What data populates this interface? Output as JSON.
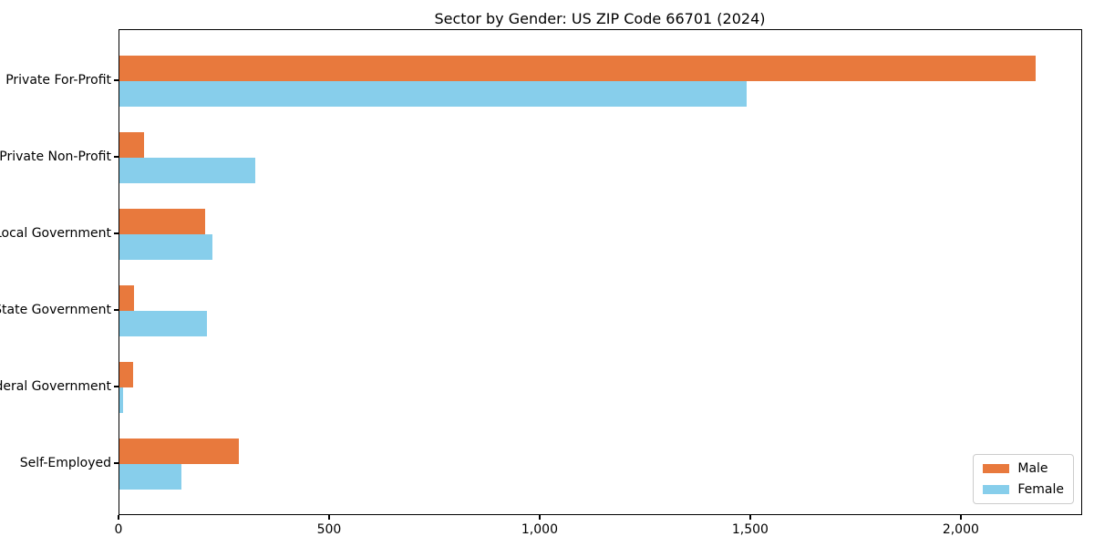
{
  "chart_data": {
    "type": "bar",
    "orientation": "horizontal",
    "title": "Sector by Gender: US ZIP Code 66701 (2024)",
    "categories": [
      "Private For-Profit",
      "Private Non-Profit",
      "Local Government",
      "State Government",
      "Federal Government",
      "Self-Employed"
    ],
    "series": [
      {
        "name": "Male",
        "color": "#e8793d",
        "values": [
          2175,
          58,
          203,
          35,
          33,
          284
        ]
      },
      {
        "name": "Female",
        "color": "#87ceeb",
        "values": [
          1490,
          322,
          221,
          208,
          9,
          147
        ]
      }
    ],
    "xlim": [
      0,
      2286
    ],
    "xticks": [
      0,
      500,
      1000,
      1500,
      2000
    ],
    "xtick_labels": [
      "0",
      "500",
      "1,000",
      "1,500",
      "2,000"
    ],
    "xlabel": "",
    "ylabel": "",
    "grid": false,
    "legend_position": "lower right",
    "background_color": "#ffffff",
    "axis_color": "#000000"
  }
}
